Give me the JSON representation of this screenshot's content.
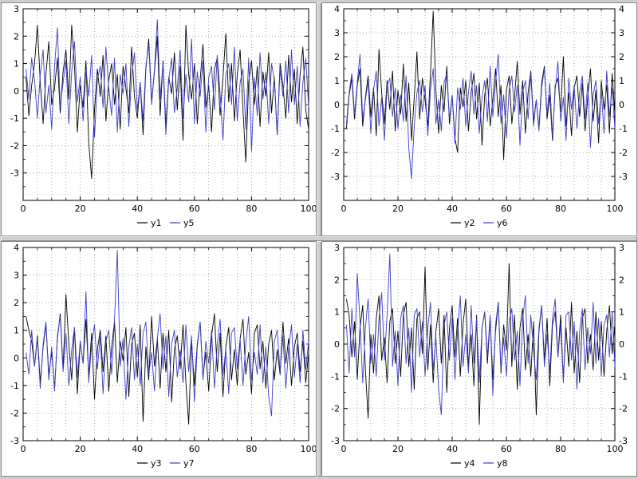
{
  "app": {
    "background_color": "#cfcfcf",
    "panel_border_color": "#8a8a8a",
    "grid_color": "#888888",
    "axis_color": "#000000",
    "tick_font_size": 11,
    "legend_font_size": 11
  },
  "chart_data": [
    {
      "type": "line",
      "title": "",
      "xlabel": "",
      "ylabel": "",
      "x_start": 1,
      "x_step": 1,
      "x_range": [
        0,
        100
      ],
      "xticks": [
        0,
        20,
        40,
        60,
        80,
        100
      ],
      "ylim": [
        -4,
        3
      ],
      "yticks": [
        3,
        2,
        1,
        0,
        -1,
        -2,
        -3
      ],
      "grid": true,
      "legend_position": "bottom",
      "right_axis": false,
      "series": [
        {
          "name": "y1",
          "color": "#000000",
          "values": [
            0.5,
            -0.9,
            0.2,
            1.0,
            2.4,
            0.3,
            -1.2,
            0.6,
            1.8,
            -0.5,
            0.1,
            1.2,
            -0.8,
            0.7,
            1.5,
            -0.3,
            2.4,
            0.9,
            -1.5,
            0.2,
            -0.6,
            1.1,
            -1.9,
            -3.2,
            -0.7,
            0.8,
            -0.2,
            1.3,
            -1.1,
            0.4,
            1.0,
            -0.5,
            0.6,
            -1.4,
            0.9,
            0.1,
            -0.8,
            1.6,
            -0.2,
            -1.0,
            0.3,
            -1.6,
            0.8,
            1.9,
            -0.4,
            0.7,
            2.0,
            -0.9,
            1.1,
            -1.3,
            0.5,
            -0.1,
            1.4,
            -0.7,
            0.9,
            -1.8,
            2.4,
            0.6,
            -0.3,
            1.0,
            -1.2,
            0.4,
            1.7,
            -0.6,
            0.2,
            -1.5,
            0.8,
            1.2,
            -0.9,
            0.5,
            2.1,
            -0.4,
            1.0,
            -1.1,
            0.6,
            1.5,
            -0.7,
            -2.6,
            0.3,
            1.1,
            -0.5,
            0.9,
            -1.3,
            0.7,
            -0.2,
            1.4,
            -0.8,
            0.5,
            -1.6,
            1.0,
            0.2,
            -1.0,
            1.3,
            -0.4,
            0.8,
            -1.2,
            0.6,
            1.6,
            -0.7,
            -1.4
          ]
        },
        {
          "name": "y5",
          "color": "#3c3cc8",
          "values": [
            0.8,
            -0.3,
            1.2,
            0.4,
            -1.0,
            0.6,
            1.5,
            -0.8,
            0.2,
            -1.4,
            0.9,
            2.3,
            -0.6,
            0.3,
            1.1,
            -1.2,
            0.7,
            1.8,
            -0.4,
            0.5,
            -1.1,
            0.8,
            -0.2,
            1.3,
            -1.7,
            0.4,
            0.9,
            -0.6,
            1.6,
            0.1,
            -0.9,
            1.2,
            -1.5,
            0.6,
            -0.1,
            1.0,
            -1.3,
            0.5,
            1.4,
            -0.7,
            0.3,
            -1.1,
            0.9,
            1.7,
            -0.5,
            0.8,
            2.6,
            -0.3,
            1.0,
            -1.6,
            0.4,
            1.2,
            -0.8,
            0.1,
            1.5,
            -1.0,
            0.6,
            -0.4,
            1.9,
            -1.2,
            0.7,
            -0.2,
            1.1,
            -1.5,
            0.5,
            0.9,
            -0.7,
            1.3,
            -0.1,
            -1.8,
            0.6,
            1.0,
            -0.5,
            1.6,
            -1.1,
            0.3,
            0.8,
            -1.4,
            1.2,
            -2.2,
            0.5,
            -0.9,
            1.4,
            -0.3,
            0.7,
            -1.2,
            1.0,
            0.4,
            -1.6,
            0.8,
            -0.2,
            1.1,
            -0.8,
            1.5,
            -0.5,
            0.9,
            -1.3,
            0.3,
            1.2,
            -0.6
          ]
        }
      ]
    },
    {
      "type": "line",
      "title": "",
      "xlabel": "",
      "ylabel": "",
      "x_start": 1,
      "x_step": 1,
      "x_range": [
        0,
        100
      ],
      "xticks": [
        0,
        20,
        40,
        60,
        80,
        100
      ],
      "ylim": [
        -4,
        4
      ],
      "yticks": [
        4,
        3,
        2,
        1,
        0,
        -1,
        -2,
        -3
      ],
      "grid": true,
      "legend_position": "bottom",
      "right_axis": true,
      "series": [
        {
          "name": "y2",
          "color": "#000000",
          "values": [
            -1.0,
            0.4,
            1.1,
            -0.6,
            0.8,
            1.5,
            -0.9,
            0.3,
            1.2,
            -0.5,
            0.7,
            -1.3,
            2.3,
            0.5,
            -0.8,
            1.0,
            -0.2,
            1.4,
            -1.1,
            0.6,
            -0.4,
            1.7,
            -0.7,
            0.9,
            -1.5,
            0.3,
            2.2,
            -0.6,
            1.1,
            0.2,
            -0.9,
            1.3,
            3.9,
            0.6,
            -1.2,
            0.8,
            -0.3,
            1.6,
            -0.8,
            0.4,
            -1.4,
            -2.0,
            0.7,
            -0.1,
            1.0,
            -1.1,
            0.5,
            1.3,
            -0.6,
            0.9,
            -1.7,
            0.4,
            1.1,
            -0.9,
            0.2,
            1.5,
            -0.5,
            0.8,
            -2.3,
            0.6,
            1.2,
            -0.8,
            0.3,
            1.8,
            -0.4,
            1.0,
            -1.2,
            0.5,
            1.4,
            -0.7,
            0.2,
            -1.0,
            0.9,
            1.6,
            -0.6,
            0.4,
            -1.5,
            0.8,
            1.1,
            -0.3,
            2.0,
            -0.9,
            0.5,
            -1.3,
            0.7,
            1.2,
            -0.5,
            0.9,
            -1.1,
            0.3,
            1.5,
            -0.7,
            0.6,
            -1.6,
            1.0,
            -0.2,
            0.8,
            -1.2,
            1.3,
            -0.4
          ]
        },
        {
          "name": "y6",
          "color": "#3c3cc8",
          "values": [
            -0.8,
            0.5,
            1.3,
            -0.4,
            0.9,
            2.1,
            -0.6,
            0.2,
            1.0,
            -1.2,
            0.6,
            1.4,
            -0.9,
            0.3,
            -1.5,
            0.8,
            1.1,
            -0.5,
            0.7,
            -1.0,
            0.4,
            -0.7,
            1.2,
            -1.8,
            -3.1,
            -0.9,
            0.5,
            1.0,
            -0.3,
            0.8,
            -1.3,
            0.6,
            1.5,
            -0.8,
            0.2,
            -1.1,
            0.9,
            1.3,
            -0.6,
            0.4,
            -1.6,
            0.7,
            -0.2,
            1.1,
            -0.9,
            0.5,
            1.4,
            -0.4,
            0.8,
            -1.2,
            0.3,
            1.0,
            -0.7,
            1.6,
            -0.5,
            0.9,
            2.1,
            -0.8,
            0.4,
            -1.4,
            0.6,
            1.2,
            -0.3,
            0.8,
            -1.7,
            0.5,
            1.0,
            -0.6,
            1.3,
            -0.9,
            0.2,
            -1.1,
            0.7,
            1.5,
            -0.4,
            0.9,
            -1.3,
            0.6,
            1.8,
            -0.7,
            0.3,
            -1.5,
            1.1,
            -0.2,
            0.8,
            -1.0,
            0.5,
            1.2,
            -0.6,
            0.9,
            -1.8,
            0.4,
            1.0,
            -0.8,
            0.6,
            -1.2,
            1.4,
            -0.5,
            0.7,
            -1.0
          ]
        }
      ]
    },
    {
      "type": "line",
      "title": "",
      "xlabel": "",
      "ylabel": "",
      "x_start": 1,
      "x_step": 1,
      "x_range": [
        0,
        100
      ],
      "xticks": [
        0,
        20,
        40,
        60,
        80,
        100
      ],
      "ylim": [
        -3,
        4
      ],
      "yticks": [
        4,
        3,
        2,
        1,
        0,
        -1,
        -2,
        -3
      ],
      "grid": true,
      "legend_position": "bottom",
      "right_axis": false,
      "series": [
        {
          "name": "y3",
          "color": "#000000",
          "values": [
            1.5,
            1.0,
            0.6,
            -0.3,
            0.8,
            -0.9,
            0.4,
            1.2,
            -0.6,
            0.2,
            -1.1,
            0.7,
            1.6,
            -0.4,
            2.3,
            0.5,
            -0.8,
            1.1,
            -1.3,
            0.6,
            -0.2,
            1.4,
            -0.7,
            0.9,
            -1.5,
            0.3,
            1.0,
            -0.5,
            0.8,
            -1.2,
            0.4,
            1.3,
            -0.9,
            0.6,
            -0.1,
            1.1,
            -1.4,
            0.5,
            0.9,
            -0.7,
            1.2,
            -2.3,
            0.4,
            -0.8,
            1.5,
            -0.3,
            0.7,
            -1.1,
            0.9,
            -0.5,
            1.0,
            -1.6,
            0.3,
            0.8,
            -0.4,
            1.2,
            -0.9,
            -2.4,
            0.6,
            -1.0,
            0.5,
            1.3,
            -0.7,
            0.2,
            -1.2,
            0.8,
            1.6,
            -0.5,
            0.9,
            -1.4,
            0.4,
            1.1,
            -0.8,
            0.3,
            -1.0,
            0.7,
            1.4,
            -0.6,
            0.2,
            -1.3,
            0.9,
            1.2,
            -0.4,
            0.6,
            -1.1,
            0.5,
            1.0,
            -0.8,
            0.3,
            -0.6,
            1.3,
            -0.2,
            0.7,
            -1.0,
            0.4,
            0.9,
            -0.5,
            0.6,
            -0.9,
            0.2
          ]
        },
        {
          "name": "y7",
          "color": "#3c3cc8",
          "values": [
            0.2,
            -0.6,
            1.0,
            -0.3,
            0.7,
            -1.1,
            0.5,
            1.3,
            -0.8,
            0.4,
            -1.2,
            0.8,
            1.5,
            -0.5,
            0.9,
            -1.0,
            0.3,
            1.1,
            -0.7,
            0.6,
            -0.2,
            2.4,
            -0.9,
            0.5,
            1.2,
            -0.4,
            0.8,
            -1.3,
            0.6,
            1.0,
            -0.6,
            1.4,
            3.9,
            -0.3,
            0.7,
            -1.5,
            0.4,
            1.1,
            -0.8,
            0.5,
            -1.0,
            0.9,
            1.3,
            -0.6,
            0.2,
            -1.2,
            0.7,
            1.6,
            -0.4,
            0.8,
            -1.4,
            0.5,
            1.0,
            -0.7,
            0.3,
            -0.9,
            1.2,
            -0.5,
            0.8,
            -1.6,
            0.4,
            1.3,
            -0.8,
            0.6,
            -0.2,
            1.0,
            -1.1,
            0.5,
            1.4,
            -0.6,
            0.3,
            -1.3,
            0.9,
            1.1,
            -0.4,
            0.7,
            -1.0,
            0.5,
            1.5,
            -0.8,
            0.2,
            -0.6,
            1.2,
            -0.9,
            0.4,
            -1.4,
            -2.1,
            0.6,
            1.0,
            -0.5,
            0.8,
            -1.1,
            0.3,
            1.2,
            -0.7,
            0.5,
            -0.9,
            1.0,
            -0.4,
            0.6
          ]
        }
      ]
    },
    {
      "type": "line",
      "title": "",
      "xlabel": "",
      "ylabel": "",
      "x_start": 1,
      "x_step": 1,
      "x_range": [
        0,
        100
      ],
      "xticks": [
        0,
        20,
        40,
        60,
        80,
        100
      ],
      "ylim": [
        -3,
        3
      ],
      "yticks": [
        3,
        2,
        1,
        0,
        -1,
        -2,
        -3
      ],
      "grid": true,
      "legend_position": "bottom",
      "right_axis": true,
      "series": [
        {
          "name": "y4",
          "color": "#000000",
          "values": [
            1.4,
            0.9,
            -0.4,
            0.7,
            -1.1,
            0.5,
            1.2,
            -0.8,
            -2.3,
            0.3,
            -0.9,
            0.8,
            1.5,
            -0.5,
            0.2,
            -1.2,
            0.7,
            1.1,
            -0.6,
            0.4,
            -1.0,
            0.9,
            1.3,
            -0.7,
            0.5,
            -1.4,
            0.8,
            1.0,
            -0.3,
            2.4,
            -0.8,
            0.6,
            -1.2,
            0.4,
            1.1,
            -0.6,
            0.9,
            -1.5,
            0.5,
            1.2,
            -0.4,
            0.8,
            -1.0,
            0.6,
            1.4,
            -0.7,
            0.3,
            -1.3,
            0.9,
            -2.5,
            0.5,
            1.0,
            -0.6,
            0.8,
            -1.1,
            0.4,
            1.3,
            -0.9,
            0.6,
            -0.2,
            2.5,
            -0.7,
            0.9,
            -1.4,
            0.5,
            1.1,
            -0.8,
            0.3,
            -1.0,
            0.7,
            -2.2,
            0.4,
            1.2,
            -0.5,
            0.8,
            -1.3,
            0.6,
            1.0,
            -0.4,
            0.9,
            -1.1,
            0.5,
            -0.7,
            1.3,
            -0.9,
            0.4,
            -1.2,
            0.8,
            1.1,
            -0.6,
            0.3,
            -0.8,
            1.0,
            -0.5,
            0.7,
            -1.0,
            0.4,
            1.2,
            -0.3,
            0.6
          ]
        },
        {
          "name": "y8",
          "color": "#3c3cc8",
          "values": [
            0.6,
            -0.9,
            1.1,
            -0.4,
            2.2,
            0.7,
            -1.2,
            0.5,
            1.4,
            -0.6,
            0.3,
            -1.0,
            0.8,
            1.6,
            -0.5,
            0.9,
            2.8,
            -0.7,
            0.4,
            -1.3,
            0.8,
            1.2,
            -0.6,
            0.5,
            -1.5,
            0.9,
            1.1,
            -0.4,
            0.7,
            -1.0,
            0.5,
            1.3,
            -0.8,
            0.2,
            -1.4,
            -2.2,
            0.6,
            1.0,
            -0.5,
            0.8,
            -1.1,
            0.4,
            1.5,
            -0.7,
            0.3,
            -0.9,
            1.2,
            -0.6,
            0.8,
            -1.2,
            0.5,
            1.0,
            -0.4,
            0.9,
            -1.6,
            0.6,
            1.3,
            -0.8,
            0.2,
            -1.0,
            0.7,
            1.1,
            -0.5,
            0.4,
            -1.3,
            0.8,
            1.5,
            -0.6,
            0.9,
            -0.2,
            -1.1,
            0.5,
            1.2,
            -0.7,
            0.3,
            -0.9,
            0.8,
            1.4,
            -0.4,
            0.6,
            -1.2,
            0.9,
            1.0,
            -0.5,
            0.7,
            -1.4,
            0.4,
            1.1,
            -0.8,
            0.5,
            -0.3,
            1.3,
            -0.6,
            0.8,
            -1.0,
            0.6,
            0.9,
            -0.4,
            1.0,
            -0.7
          ]
        }
      ]
    }
  ]
}
